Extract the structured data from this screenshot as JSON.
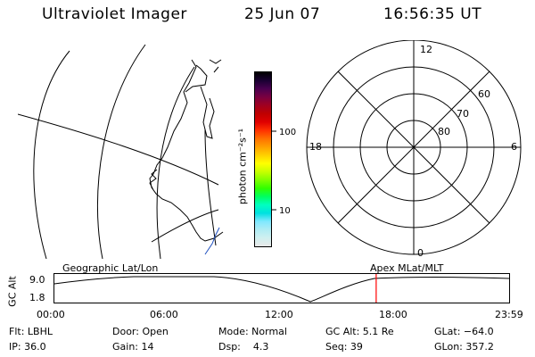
{
  "header": {
    "title": "Ultraviolet Imager",
    "date": "25 Jun 07",
    "time": "16:56:35 UT"
  },
  "colorbar": {
    "unit_label": "photon cm⁻²s⁻¹",
    "ticks": [
      "100",
      "10"
    ],
    "colors": [
      "#000000",
      "#1a0033",
      "#4a0050",
      "#7a0040",
      "#a00020",
      "#c00000",
      "#e00000",
      "#ff3000",
      "#ff7000",
      "#ffa000",
      "#ffd000",
      "#ffff00",
      "#c8ff00",
      "#80ff00",
      "#30ff00",
      "#00ff60",
      "#00ffc0",
      "#00e0e0",
      "#80e8ff",
      "#b0ecf4",
      "#d0f0f0",
      "#e8e8e8"
    ]
  },
  "polar": {
    "mlt_labels": {
      "top": "12",
      "left": "18",
      "right": "6",
      "bottom": "0"
    },
    "lat_labels": [
      "60",
      "70",
      "80"
    ]
  },
  "timeline": {
    "left_label": "Geographic Lat/Lon",
    "right_label": "Apex MLat/MLT",
    "y_label": "GC Alt",
    "y_ticks": [
      "9.0",
      "1.8"
    ],
    "x_ticks": [
      "00:00",
      "06:00",
      "12:00",
      "18:00",
      "23:59"
    ],
    "current_time_fraction": 0.7076,
    "marker_color": "#ff0000"
  },
  "footer": {
    "flt": "Flt: LBHL",
    "ip": "IP: 36.0",
    "door": "Door: Open",
    "gain": "Gain: 14",
    "mode": "Mode: Normal",
    "dsp": "Dsp:    4.3",
    "gcalt": "GC Alt: 5.1 Re",
    "seq": "Seq: 39",
    "glat": "GLat: −64.0",
    "glon": "GLon: 357.2"
  }
}
